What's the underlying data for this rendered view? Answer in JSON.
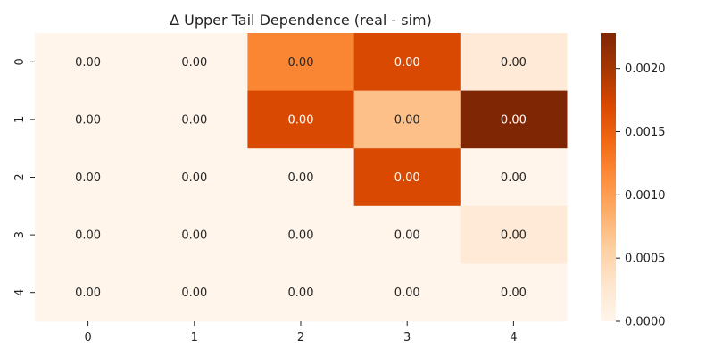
{
  "chart_data": {
    "type": "heatmap",
    "title": "Δ Upper Tail Dependence (real - sim)",
    "x_categories": [
      "0",
      "1",
      "2",
      "3",
      "4"
    ],
    "y_categories": [
      "0",
      "1",
      "2",
      "3",
      "4"
    ],
    "values": [
      [
        0.0,
        0.0,
        0.0012,
        0.0017,
        0.0002
      ],
      [
        0.0,
        0.0,
        0.0017,
        0.0007,
        0.0023
      ],
      [
        0.0,
        0.0,
        0.0,
        0.0017,
        0.0
      ],
      [
        0.0,
        0.0,
        0.0,
        0.0,
        0.0002
      ],
      [
        0.0,
        0.0,
        0.0,
        0.0,
        0.0
      ]
    ],
    "cell_labels": [
      [
        "0.00",
        "0.00",
        "0.00",
        "0.00",
        "0.00"
      ],
      [
        "0.00",
        "0.00",
        "0.00",
        "0.00",
        "0.00"
      ],
      [
        "0.00",
        "0.00",
        "0.00",
        "0.00",
        "0.00"
      ],
      [
        "0.00",
        "0.00",
        "0.00",
        "0.00",
        "0.00"
      ],
      [
        "0.00",
        "0.00",
        "0.00",
        "0.00",
        "0.00"
      ]
    ],
    "colormap": "Oranges",
    "colorbar": {
      "range": [
        0,
        0.00228
      ],
      "ticks": [
        0,
        0.0005,
        0.001,
        0.0015,
        0.002
      ],
      "tick_labels": [
        "0.0000",
        "0.0005",
        "0.0010",
        "0.0015",
        "0.0020"
      ]
    },
    "colormap_stops": [
      "#fff5eb",
      "#fee6ce",
      "#fdd0a2",
      "#fdae6b",
      "#fd8d3c",
      "#f16913",
      "#d94801",
      "#a63603",
      "#7f2704"
    ]
  }
}
